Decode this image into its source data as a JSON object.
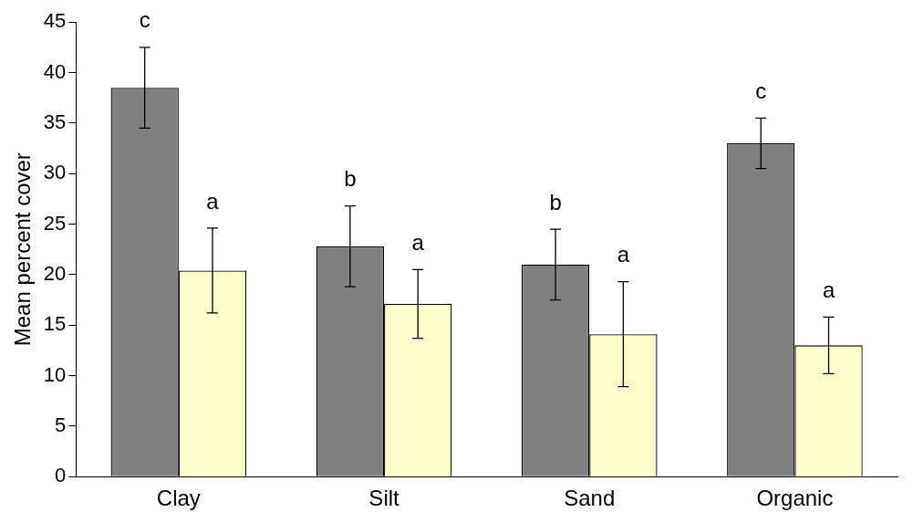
{
  "chart_data": {
    "type": "bar",
    "ylabel": "Mean percent cover",
    "categories": [
      "Clay",
      "Silt",
      "Sand",
      "Organic"
    ],
    "series": [
      {
        "color": "#808080",
        "values": [
          38.5,
          22.8,
          21,
          33
        ],
        "errors": [
          4,
          4,
          3.5,
          2.5
        ],
        "value_labels": [
          "c",
          "b",
          "b",
          "c"
        ]
      },
      {
        "color": "#ffffcc",
        "values": [
          20.4,
          17.1,
          14.1,
          13
        ],
        "errors": [
          4.2,
          3.4,
          5.2,
          2.8
        ],
        "value_labels": [
          "a",
          "a",
          "a",
          "a"
        ]
      }
    ],
    "ylim": [
      0,
      45
    ],
    "yticks": [
      0,
      5,
      10,
      15,
      20,
      25,
      30,
      35,
      40,
      45
    ],
    "grid": false,
    "legend": false
  }
}
